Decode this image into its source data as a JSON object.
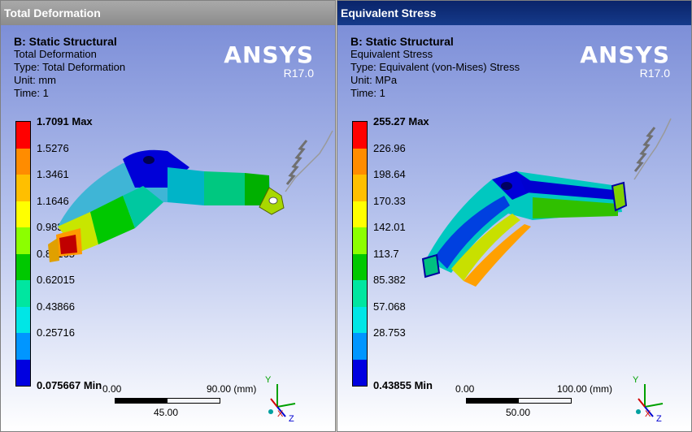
{
  "left": {
    "title": "Total Deformation",
    "heading": "B: Static Structural",
    "line1": "Total Deformation",
    "line2": "Type: Total Deformation",
    "line3": "Unit: mm",
    "line4": "Time: 1",
    "brand": "ANSYS",
    "version": "R17.0",
    "legend": [
      "1.7091 Max",
      "1.5276",
      "1.3461",
      "1.1646",
      "0.98314",
      "0.80165",
      "0.62015",
      "0.43866",
      "0.25716",
      "0.075667 Min"
    ],
    "scale_left": "0.00",
    "scale_right": "90.00 (mm)",
    "scale_mid": "45.00"
  },
  "right": {
    "title": "Equivalent Stress",
    "heading": "B: Static Structural",
    "line1": "Equivalent Stress",
    "line2": "Type: Equivalent (von-Mises) Stress",
    "line3": "Unit: MPa",
    "line4": "Time: 1",
    "brand": "ANSYS",
    "version": "R17.0",
    "legend": [
      "255.27 Max",
      "226.96",
      "198.64",
      "170.33",
      "142.01",
      "113.7",
      "85.382",
      "57.068",
      "28.753",
      "0.43855 Min"
    ],
    "scale_left": "0.00",
    "scale_right": "100.00 (mm)",
    "scale_mid": "50.00"
  },
  "triad": {
    "y": "Y",
    "x": "X",
    "z": "Z"
  },
  "colors": [
    "#ff0000",
    "#ff8c00",
    "#ffbf00",
    "#ffff00",
    "#8cff00",
    "#00c800",
    "#00e6a0",
    "#00e6e6",
    "#0096ff",
    "#0000e0"
  ]
}
